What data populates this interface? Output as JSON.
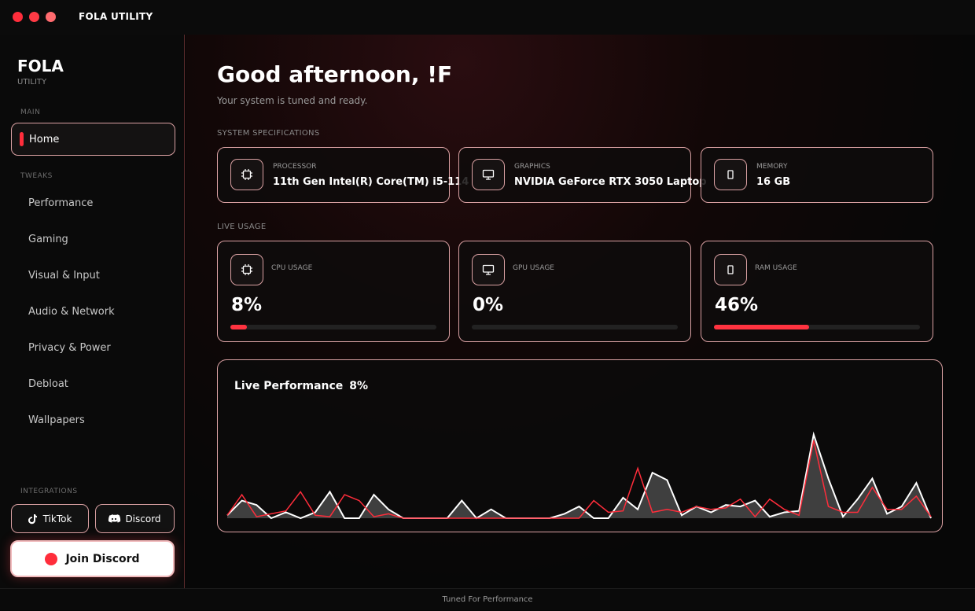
{
  "titlebar": {
    "title": "FOLA UTILITY"
  },
  "sidebar": {
    "brand": "FOLA",
    "brand_sub": "UTILITY",
    "main_label": "MAIN",
    "home_label": "Home",
    "tweaks_label": "TWEAKS",
    "items": [
      "Performance",
      "Gaming",
      "Visual & Input",
      "Audio & Network",
      "Privacy & Power",
      "Debloat",
      "Wallpapers"
    ],
    "integrations_label": "INTEGRATIONS",
    "tiktok_label": "TikTok",
    "discord_label": "Discord",
    "join_label": "Join Discord"
  },
  "main": {
    "greeting": "Good afternoon, !F",
    "subgreeting": "Your system is tuned and ready.",
    "specs_label": "SYSTEM SPECIFICATIONS",
    "specs": [
      {
        "key": "PROCESSOR",
        "value": "11th Gen Intel(R) Core(TM) i5-114",
        "icon": "cpu-icon"
      },
      {
        "key": "GRAPHICS",
        "value": "NVIDIA GeForce RTX 3050 Laptop",
        "icon": "monitor-icon"
      },
      {
        "key": "MEMORY",
        "value": "16 GB",
        "icon": "memory-icon"
      }
    ],
    "usage_label": "LIVE USAGE",
    "usage": [
      {
        "key": "CPU USAGE",
        "value": "8%",
        "percent": 8,
        "icon": "cpu-icon"
      },
      {
        "key": "GPU USAGE",
        "value": "0%",
        "percent": 0,
        "icon": "monitor-icon"
      },
      {
        "key": "RAM USAGE",
        "value": "46%",
        "percent": 46,
        "icon": "memory-icon"
      }
    ],
    "perf_title": "Live Performance",
    "perf_value": "8%"
  },
  "footer": {
    "text": "Tuned For Performance"
  },
  "colors": {
    "accent": "#ff2d3b",
    "border": "#d9a0a2"
  },
  "chart_data": {
    "type": "area",
    "series": [
      {
        "values": [
          0.2,
          1.2,
          0.9,
          0,
          0.4,
          0,
          0.4,
          1.8,
          0,
          0,
          1.6,
          0.6,
          0,
          0,
          0,
          0,
          1.2,
          0,
          0.6,
          0,
          0,
          0,
          0,
          0.3,
          0.8,
          0,
          0,
          1.4,
          0.6,
          3.1,
          2.6,
          0.2,
          0.8,
          0.4,
          0.9,
          0.8,
          1.2,
          0.1,
          0.4,
          0.5,
          5.7,
          2.7,
          0.1,
          1.3,
          2.7,
          0.3,
          0.8,
          2.4,
          0
        ]
      },
      {
        "values": [
          0.2,
          1.6,
          0.1,
          0.3,
          0.5,
          1.8,
          0.2,
          0.1,
          1.6,
          1.2,
          0.1,
          0.3,
          0,
          0,
          0,
          0,
          0,
          0,
          0,
          0,
          0,
          0,
          0,
          0,
          0,
          1.2,
          0.4,
          0.5,
          3.4,
          0.4,
          0.6,
          0.4,
          0.8,
          0.6,
          0.7,
          1.3,
          0.1,
          1.3,
          0.6,
          0.2,
          5.3,
          0.8,
          0.4,
          0.4,
          2.1,
          0.6,
          0.6,
          1.5,
          0.1
        ]
      }
    ]
  }
}
